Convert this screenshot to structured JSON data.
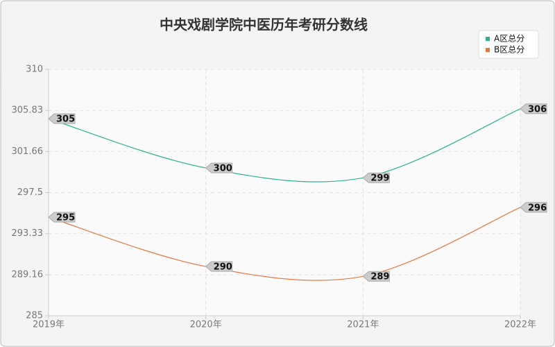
{
  "chart_data": {
    "type": "line",
    "title": "中央戏剧学院中医历年考研分数线",
    "categories": [
      "2019年",
      "2020年",
      "2021年",
      "2022年"
    ],
    "series": [
      {
        "name": "A区总分",
        "color": "#2bb38f",
        "values": [
          305,
          300,
          299,
          306
        ]
      },
      {
        "name": "B区总分",
        "color": "#e8773f",
        "values": [
          295,
          290,
          289,
          296
        ]
      }
    ],
    "ylim": [
      285,
      310
    ],
    "yticks": [
      285,
      289.16,
      293.33,
      297.5,
      301.66,
      305.83,
      310
    ],
    "grid": true,
    "smooth": true,
    "legend": "top-right"
  }
}
